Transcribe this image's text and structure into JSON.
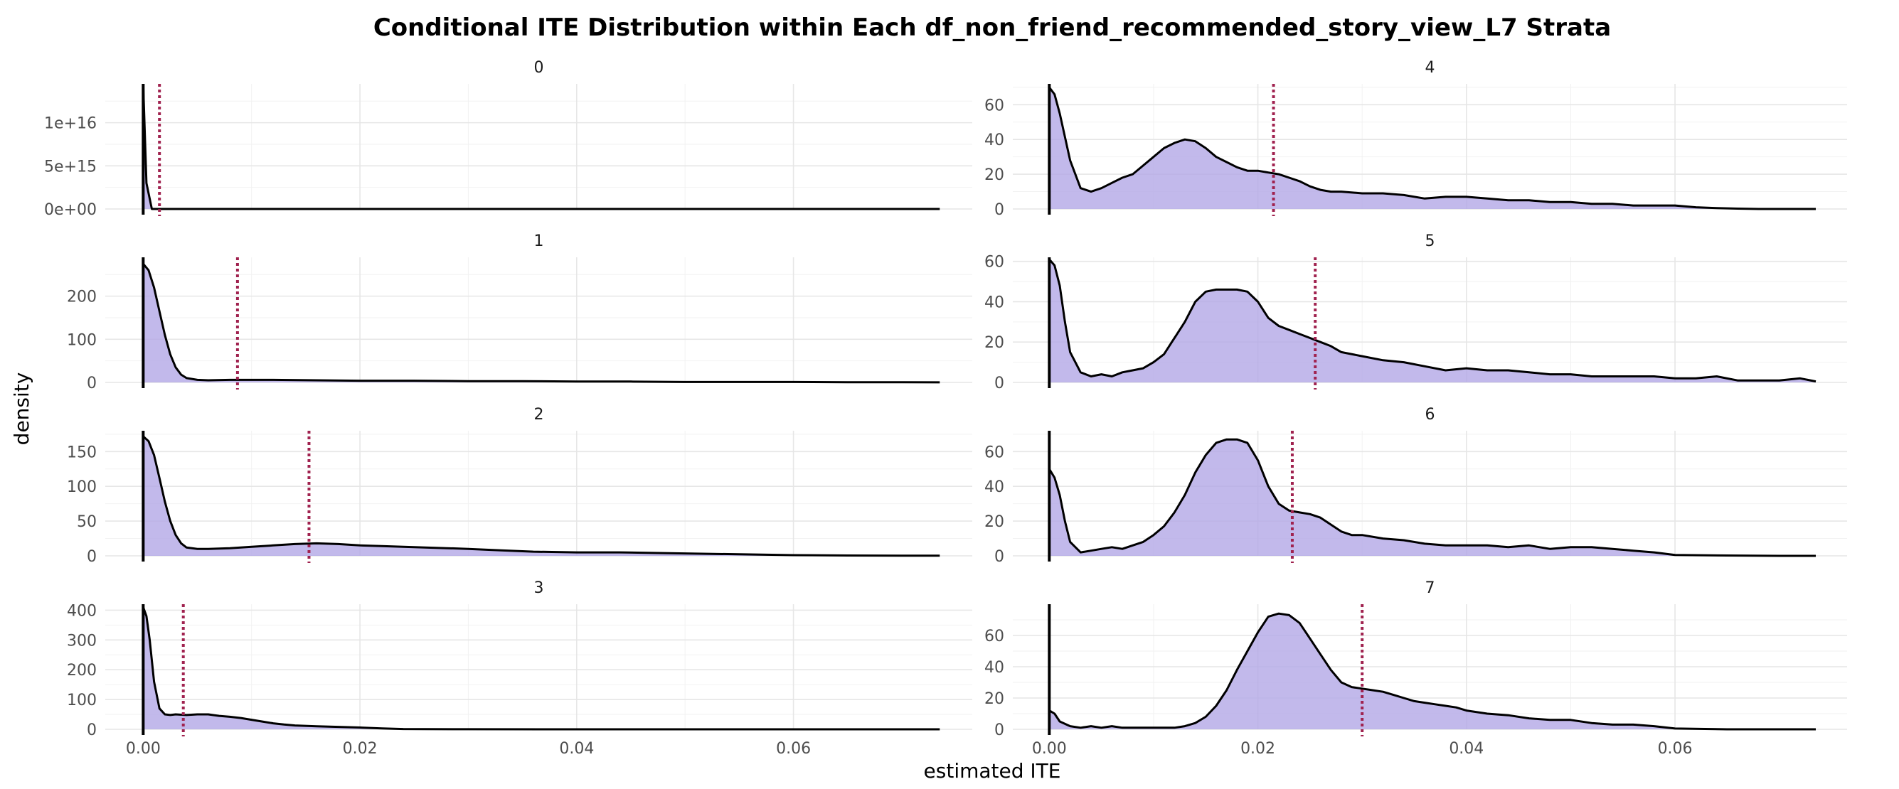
{
  "chart_data": {
    "type": "area",
    "title": "Conditional ITE Distribution within Each df_non_friend_recommended_story_view_L7 Strata",
    "xlabel": "estimated ITE",
    "ylabel": "density",
    "x_ticks": [
      0.0,
      0.02,
      0.04,
      0.06
    ],
    "x_tick_labels": [
      "0.00",
      "0.02",
      "0.04",
      "0.06"
    ],
    "xlim": [
      -0.0035,
      0.0765
    ],
    "grid": true,
    "colors": {
      "fill": "#b3a8e6",
      "fill_opacity": 0.8,
      "mean_line": "#a0224f",
      "line": "#000000"
    },
    "panels": [
      {
        "strip": "0",
        "ylim": [
          0,
          1.45e+16
        ],
        "y_ticks": [
          0,
          5000000000000000.0,
          1e+16
        ],
        "y_tick_labels": [
          "0e+00",
          "5e+15",
          "1e+16"
        ],
        "mean_ite": 0.0015,
        "x": [
          0.0,
          0.0003,
          0.0008,
          0.003,
          0.01,
          0.03,
          0.06,
          0.0735
        ],
        "y": [
          1.45e+16,
          3000000000000000.0,
          0,
          0,
          0,
          0,
          0,
          0
        ]
      },
      {
        "strip": "4",
        "ylim": [
          0,
          72
        ],
        "y_ticks": [
          0,
          20,
          40,
          60
        ],
        "y_tick_labels": [
          "0",
          "20",
          "40",
          "60"
        ],
        "mean_ite": 0.0215,
        "x": [
          0.0,
          0.0005,
          0.001,
          0.002,
          0.003,
          0.004,
          0.005,
          0.006,
          0.007,
          0.008,
          0.009,
          0.01,
          0.011,
          0.012,
          0.013,
          0.014,
          0.015,
          0.016,
          0.017,
          0.018,
          0.019,
          0.02,
          0.021,
          0.022,
          0.023,
          0.024,
          0.025,
          0.026,
          0.027,
          0.028,
          0.03,
          0.032,
          0.034,
          0.036,
          0.038,
          0.04,
          0.042,
          0.044,
          0.046,
          0.048,
          0.05,
          0.052,
          0.054,
          0.056,
          0.058,
          0.06,
          0.062,
          0.064,
          0.066,
          0.068,
          0.07,
          0.0735
        ],
        "y": [
          70,
          66,
          55,
          28,
          12,
          10,
          12,
          15,
          18,
          20,
          25,
          30,
          35,
          38,
          40,
          39,
          35,
          30,
          27,
          24,
          22,
          22,
          21,
          20,
          18,
          16,
          13,
          11,
          10,
          10,
          9,
          9,
          8,
          6,
          7,
          7,
          6,
          5,
          5,
          4,
          4,
          3,
          3,
          2,
          2,
          2,
          1,
          0.5,
          0.2,
          0,
          0,
          0
        ]
      },
      {
        "strip": "1",
        "ylim": [
          0,
          290
        ],
        "y_ticks": [
          0,
          100,
          200
        ],
        "y_tick_labels": [
          "0",
          "100",
          "200"
        ],
        "mean_ite": 0.0087,
        "x": [
          0.0,
          0.0005,
          0.001,
          0.0015,
          0.002,
          0.0025,
          0.003,
          0.0035,
          0.004,
          0.005,
          0.006,
          0.008,
          0.01,
          0.012,
          0.016,
          0.02,
          0.025,
          0.03,
          0.035,
          0.04,
          0.045,
          0.05,
          0.055,
          0.06,
          0.065,
          0.07,
          0.0735
        ],
        "y": [
          275,
          260,
          220,
          165,
          110,
          65,
          35,
          18,
          10,
          6,
          5,
          6,
          6,
          6,
          5,
          4,
          4,
          3,
          3,
          2,
          2,
          1,
          1,
          1,
          0.5,
          0.3,
          0.2
        ]
      },
      {
        "strip": "5",
        "ylim": [
          0,
          62
        ],
        "y_ticks": [
          0,
          20,
          40,
          60
        ],
        "y_tick_labels": [
          "0",
          "20",
          "40",
          "60"
        ],
        "mean_ite": 0.0255,
        "x": [
          0.0,
          0.0005,
          0.001,
          0.0015,
          0.002,
          0.003,
          0.004,
          0.005,
          0.006,
          0.007,
          0.008,
          0.009,
          0.01,
          0.011,
          0.012,
          0.013,
          0.014,
          0.015,
          0.016,
          0.017,
          0.018,
          0.019,
          0.02,
          0.021,
          0.022,
          0.023,
          0.024,
          0.025,
          0.026,
          0.027,
          0.028,
          0.03,
          0.032,
          0.034,
          0.036,
          0.038,
          0.04,
          0.042,
          0.044,
          0.046,
          0.048,
          0.05,
          0.052,
          0.054,
          0.056,
          0.058,
          0.06,
          0.062,
          0.064,
          0.066,
          0.068,
          0.07,
          0.072,
          0.0735
        ],
        "y": [
          61,
          58,
          48,
          30,
          15,
          5,
          3,
          4,
          3,
          5,
          6,
          7,
          10,
          14,
          22,
          30,
          40,
          45,
          46,
          46,
          46,
          45,
          40,
          32,
          28,
          26,
          24,
          22,
          20,
          18,
          15,
          13,
          11,
          10,
          8,
          6,
          7,
          6,
          6,
          5,
          4,
          4,
          3,
          3,
          3,
          3,
          2,
          2,
          3,
          1,
          1,
          1,
          2,
          0.5
        ]
      },
      {
        "strip": "2",
        "ylim": [
          0,
          180
        ],
        "y_ticks": [
          0,
          50,
          100,
          150
        ],
        "y_tick_labels": [
          "0",
          "50",
          "100",
          "150"
        ],
        "mean_ite": 0.0153,
        "x": [
          0.0,
          0.0005,
          0.001,
          0.0015,
          0.002,
          0.0025,
          0.003,
          0.0035,
          0.004,
          0.005,
          0.006,
          0.008,
          0.01,
          0.012,
          0.014,
          0.016,
          0.018,
          0.02,
          0.022,
          0.024,
          0.026,
          0.028,
          0.03,
          0.033,
          0.036,
          0.04,
          0.044,
          0.048,
          0.052,
          0.056,
          0.06,
          0.065,
          0.07,
          0.0735
        ],
        "y": [
          172,
          165,
          145,
          112,
          78,
          50,
          30,
          18,
          12,
          10,
          10,
          11,
          13,
          15,
          17,
          18,
          17,
          15,
          14,
          13,
          12,
          11,
          10,
          8,
          6,
          5,
          5,
          4,
          3,
          2,
          1,
          0.5,
          0.3,
          0.2
        ]
      },
      {
        "strip": "6",
        "ylim": [
          0,
          72
        ],
        "y_ticks": [
          0,
          20,
          40,
          60
        ],
        "y_tick_labels": [
          "0",
          "20",
          "40",
          "60"
        ],
        "mean_ite": 0.0233,
        "x": [
          0.0,
          0.0005,
          0.001,
          0.0015,
          0.002,
          0.003,
          0.004,
          0.005,
          0.006,
          0.007,
          0.008,
          0.009,
          0.01,
          0.011,
          0.012,
          0.013,
          0.014,
          0.015,
          0.016,
          0.017,
          0.018,
          0.019,
          0.02,
          0.021,
          0.022,
          0.023,
          0.024,
          0.025,
          0.026,
          0.027,
          0.028,
          0.029,
          0.03,
          0.032,
          0.034,
          0.036,
          0.038,
          0.04,
          0.042,
          0.044,
          0.046,
          0.048,
          0.05,
          0.052,
          0.054,
          0.056,
          0.058,
          0.06,
          0.065,
          0.07,
          0.0735
        ],
        "y": [
          50,
          45,
          35,
          20,
          8,
          2,
          3,
          4,
          5,
          4,
          6,
          8,
          12,
          17,
          25,
          35,
          48,
          58,
          65,
          67,
          67,
          65,
          55,
          40,
          30,
          26,
          25,
          24,
          22,
          18,
          14,
          12,
          12,
          10,
          9,
          7,
          6,
          6,
          6,
          5,
          6,
          4,
          5,
          5,
          4,
          3,
          2,
          0.5,
          0.2,
          0,
          0
        ]
      },
      {
        "strip": "3",
        "ylim": [
          0,
          420
        ],
        "y_ticks": [
          0,
          100,
          200,
          300,
          400
        ],
        "y_tick_labels": [
          "0",
          "100",
          "200",
          "300",
          "400"
        ],
        "mean_ite": 0.0037,
        "x": [
          0.0,
          0.0003,
          0.0006,
          0.001,
          0.0015,
          0.002,
          0.0025,
          0.003,
          0.004,
          0.005,
          0.006,
          0.007,
          0.008,
          0.009,
          0.01,
          0.011,
          0.012,
          0.013,
          0.014,
          0.016,
          0.018,
          0.02,
          0.022,
          0.024,
          0.026,
          0.03,
          0.04,
          0.05,
          0.06,
          0.07,
          0.0735
        ],
        "y": [
          410,
          380,
          300,
          160,
          70,
          50,
          48,
          50,
          48,
          50,
          50,
          45,
          42,
          38,
          32,
          26,
          20,
          16,
          13,
          10,
          8,
          6,
          3,
          1,
          0.5,
          0.2,
          0,
          0,
          0,
          0,
          0
        ]
      },
      {
        "strip": "7",
        "ylim": [
          0,
          80
        ],
        "y_ticks": [
          0,
          20,
          40,
          60
        ],
        "y_tick_labels": [
          "0",
          "20",
          "40",
          "60"
        ],
        "mean_ite": 0.03,
        "x": [
          0.0,
          0.0005,
          0.001,
          0.002,
          0.003,
          0.004,
          0.005,
          0.006,
          0.007,
          0.008,
          0.009,
          0.01,
          0.011,
          0.012,
          0.013,
          0.014,
          0.015,
          0.016,
          0.017,
          0.018,
          0.019,
          0.02,
          0.021,
          0.022,
          0.023,
          0.024,
          0.025,
          0.026,
          0.027,
          0.028,
          0.029,
          0.03,
          0.031,
          0.032,
          0.033,
          0.034,
          0.035,
          0.036,
          0.037,
          0.038,
          0.039,
          0.04,
          0.042,
          0.044,
          0.046,
          0.048,
          0.05,
          0.052,
          0.054,
          0.056,
          0.058,
          0.06,
          0.065,
          0.07,
          0.0735
        ],
        "y": [
          12,
          10,
          5,
          2,
          1,
          2,
          1,
          2,
          1,
          1,
          1,
          1,
          1,
          1,
          2,
          4,
          8,
          15,
          25,
          38,
          50,
          62,
          72,
          74,
          73,
          68,
          58,
          48,
          38,
          30,
          27,
          26,
          25,
          24,
          22,
          20,
          18,
          17,
          16,
          15,
          14,
          12,
          10,
          9,
          7,
          6,
          6,
          4,
          3,
          3,
          2,
          0.5,
          0,
          0,
          0
        ]
      }
    ]
  }
}
